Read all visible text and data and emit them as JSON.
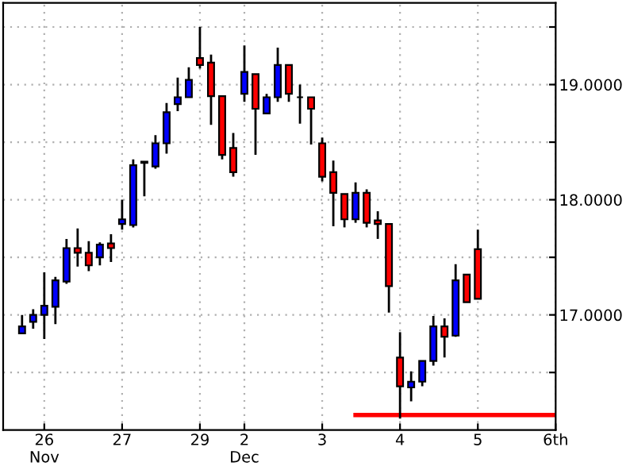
{
  "chart_data": {
    "type": "candlestick",
    "categories": [
      null,
      null,
      "26\nNov",
      null,
      null,
      null,
      null,
      null,
      null,
      "27",
      null,
      null,
      null,
      null,
      null,
      null,
      "29",
      null,
      null,
      null,
      "2\nDec",
      null,
      null,
      null,
      null,
      null,
      null,
      "3",
      null,
      null,
      null,
      null,
      null,
      null,
      "4",
      null,
      null,
      null,
      null,
      null,
      null,
      "5",
      null,
      null,
      null,
      null,
      null,
      null,
      "6th"
    ],
    "ohlc": [
      [
        16.84,
        17.0,
        16.84,
        16.9
      ],
      [
        16.94,
        17.05,
        16.88,
        17.0
      ],
      [
        17.0,
        17.37,
        16.79,
        17.08
      ],
      [
        17.07,
        17.33,
        16.92,
        17.3
      ],
      [
        17.29,
        17.66,
        17.27,
        17.58
      ],
      [
        17.58,
        17.75,
        17.42,
        17.54
      ],
      [
        17.54,
        17.64,
        17.38,
        17.43
      ],
      [
        17.5,
        17.63,
        17.43,
        17.61
      ],
      [
        17.62,
        17.7,
        17.46,
        17.58
      ],
      [
        17.79,
        18.0,
        17.74,
        17.83
      ],
      [
        17.78,
        18.35,
        17.76,
        18.3
      ],
      [
        18.32,
        18.33,
        18.03,
        18.33
      ],
      [
        18.29,
        18.56,
        18.27,
        18.49
      ],
      [
        18.49,
        18.84,
        18.4,
        18.76
      ],
      [
        18.83,
        19.06,
        18.77,
        18.89
      ],
      [
        18.89,
        19.15,
        18.89,
        19.04
      ],
      [
        19.23,
        19.5,
        19.14,
        19.17
      ],
      [
        19.19,
        19.26,
        18.65,
        18.9
      ],
      [
        18.9,
        18.9,
        18.35,
        18.39
      ],
      [
        18.45,
        18.58,
        18.2,
        18.24
      ],
      [
        18.92,
        19.34,
        18.85,
        19.11
      ],
      [
        19.09,
        19.09,
        18.39,
        18.79
      ],
      [
        18.75,
        18.92,
        18.75,
        18.89
      ],
      [
        18.89,
        19.32,
        18.85,
        19.17
      ],
      [
        19.17,
        19.17,
        18.85,
        18.92
      ],
      [
        18.89,
        19.0,
        18.66,
        18.89
      ],
      [
        18.89,
        18.89,
        18.48,
        18.79
      ],
      [
        18.49,
        18.54,
        18.16,
        18.2
      ],
      [
        18.24,
        18.34,
        17.77,
        18.06
      ],
      [
        18.05,
        18.05,
        17.76,
        17.83
      ],
      [
        17.83,
        18.15,
        17.8,
        18.06
      ],
      [
        18.06,
        18.09,
        17.76,
        17.8
      ],
      [
        17.82,
        17.9,
        17.66,
        17.79
      ],
      [
        17.79,
        17.79,
        17.02,
        17.25
      ],
      [
        16.63,
        16.85,
        16.1,
        16.38
      ],
      [
        16.37,
        16.51,
        16.25,
        16.42
      ],
      [
        16.42,
        16.6,
        16.38,
        16.6
      ],
      [
        16.6,
        16.99,
        16.56,
        16.9
      ],
      [
        16.9,
        16.97,
        16.63,
        16.81
      ],
      [
        16.82,
        17.44,
        16.81,
        17.3
      ],
      [
        17.35,
        17.35,
        17.11,
        17.11
      ],
      [
        17.57,
        17.74,
        17.14,
        17.14
      ],
      null,
      null,
      null,
      null,
      null,
      null,
      null
    ],
    "colors": [
      "#0000ff",
      "#0000ff",
      "#0000ff",
      "#0000ff",
      "#0000ff",
      "#ff0000",
      "#ff0000",
      "#0000ff",
      "#ff0000",
      "#0000ff",
      "#0000ff",
      "#0000ff",
      "#0000ff",
      "#0000ff",
      "#0000ff",
      "#0000ff",
      "#ff0000",
      "#ff0000",
      "#ff0000",
      "#ff0000",
      "#0000ff",
      "#ff0000",
      "#0000ff",
      "#0000ff",
      "#ff0000",
      "#000000",
      "#ff0000",
      "#ff0000",
      "#ff0000",
      "#ff0000",
      "#0000ff",
      "#ff0000",
      "#ff0000",
      "#ff0000",
      "#ff0000",
      "#0000ff",
      "#0000ff",
      "#0000ff",
      "#ff0000",
      "#0000ff",
      "#ff0000",
      "#ff0000",
      null,
      null,
      null,
      null,
      null,
      null,
      null
    ],
    "series": [
      {
        "type": "line",
        "values": [
          null,
          null,
          null,
          null,
          null,
          null,
          null,
          null,
          null,
          null,
          null,
          null,
          null,
          null,
          null,
          null,
          null,
          null,
          null,
          null,
          null,
          null,
          null,
          null,
          null,
          null,
          null,
          null,
          null,
          null,
          16.13,
          16.13,
          16.13,
          16.13,
          16.13,
          16.13,
          16.13,
          16.13,
          16.13,
          16.13,
          16.13,
          16.13,
          16.13,
          16.13,
          16.13,
          16.13,
          16.13,
          16.13,
          16.13
        ],
        "color": "#ff0000"
      }
    ],
    "ylim": [
      16.0,
      19.71
    ],
    "yticks": [
      {
        "value": 16.5,
        "label": null
      },
      {
        "value": 17.0,
        "label": "17.0000"
      },
      {
        "value": 17.5,
        "label": null
      },
      {
        "value": 18.0,
        "label": "18.0000"
      },
      {
        "value": 18.5,
        "label": null
      },
      {
        "value": 19.0,
        "label": "19.0000"
      },
      {
        "value": 19.5,
        "label": null
      }
    ],
    "grid": true
  }
}
